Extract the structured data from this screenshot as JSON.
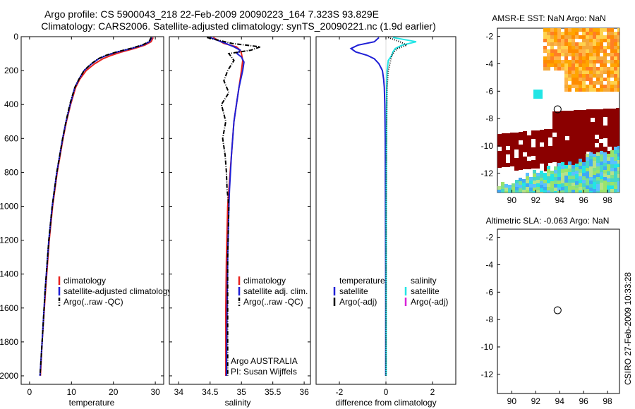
{
  "header": {
    "line1": "Argo profile: CS 5900043_218 22-Feb-2009 20090223_164 7.323S 93.829E",
    "line2": "Climatology: CARS2006. Satellite-adjusted climatology: synTS_20090221.nc (1.9d earlier)"
  },
  "side_label": "CSIRO 27-Feb-2009 10:33:28",
  "colors": {
    "climatology": "#e8231e",
    "satellite": "#1f1fd6",
    "argo": "#000000",
    "salinity_satellite": "#22e5e5",
    "salinity_argo": "#d822d8",
    "sst_land": "#8b0000"
  },
  "chart_data": [
    {
      "id": "temperature",
      "type": "line",
      "xlabel": "temperature",
      "xlim": [
        -2,
        32
      ],
      "ylim": [
        2050,
        0
      ],
      "xticks": [
        "0",
        "10",
        "20",
        "30"
      ],
      "xtick_values": [
        0,
        10,
        20,
        30
      ],
      "yticks": [
        "0",
        "200",
        "400",
        "600",
        "800",
        "1000",
        "1200",
        "1400",
        "1600",
        "1800",
        "2000"
      ],
      "ytick_values": [
        0,
        200,
        400,
        600,
        800,
        1000,
        1200,
        1400,
        1600,
        1800,
        2000
      ],
      "legend": [
        "climatology",
        "satellite-adjusted climatology",
        "Argo(..raw -QC)"
      ],
      "series": [
        {
          "name": "climatology",
          "color": "#e8231e",
          "style": "solid",
          "depth": [
            5,
            30,
            50,
            70,
            90,
            110,
            130,
            160,
            200,
            250,
            300,
            400,
            500,
            600,
            800,
            1000,
            1200,
            1500,
            1800,
            2000
          ],
          "values": [
            29.5,
            29.0,
            27.5,
            25.0,
            22.0,
            19.5,
            17.5,
            15.5,
            13.5,
            12.0,
            11.0,
            9.8,
            8.8,
            8.0,
            6.6,
            5.5,
            4.7,
            3.8,
            3.0,
            2.6
          ]
        },
        {
          "name": "satellite-adjusted climatology",
          "color": "#1f1fd6",
          "style": "solid",
          "depth": [
            5,
            30,
            50,
            70,
            90,
            110,
            130,
            160,
            200,
            250,
            300,
            400,
            500,
            600,
            800,
            1000,
            1200,
            1500,
            1800,
            2000
          ],
          "values": [
            29.2,
            28.6,
            27.0,
            24.3,
            21.0,
            18.4,
            16.5,
            14.8,
            13.0,
            11.8,
            10.8,
            9.7,
            8.7,
            7.9,
            6.5,
            5.4,
            4.6,
            3.7,
            3.0,
            2.5
          ]
        },
        {
          "name": "Argo(..raw -QC)",
          "color": "#000000",
          "style": "dashdot",
          "depth": [
            5,
            30,
            50,
            70,
            90,
            110,
            130,
            160,
            200,
            250,
            300,
            400,
            500,
            600,
            800,
            1000,
            1200,
            1500,
            1800,
            2000
          ],
          "values": [
            29.0,
            28.5,
            26.8,
            24.0,
            20.8,
            18.2,
            16.4,
            14.7,
            13.0,
            11.8,
            10.8,
            9.6,
            8.7,
            7.9,
            6.5,
            5.4,
            4.6,
            3.7,
            3.0,
            2.5
          ]
        }
      ]
    },
    {
      "id": "salinity",
      "type": "line",
      "xlabel": "salinity",
      "xlim": [
        33.85,
        36.1
      ],
      "ylim": [
        2050,
        0
      ],
      "xticks": [
        "34",
        "34.5",
        "35",
        "35.5",
        "36"
      ],
      "xtick_values": [
        34,
        34.5,
        35,
        35.5,
        36
      ],
      "legend": [
        "climatology",
        "satellite adj. clim.",
        "Argo(..raw -QC)"
      ],
      "annotation": [
        "Argo AUSTRALIA",
        "PI: Susan Wijffels"
      ],
      "series": [
        {
          "name": "climatology",
          "color": "#e8231e",
          "style": "solid",
          "depth": [
            5,
            40,
            60,
            80,
            100,
            140,
            200,
            300,
            400,
            500,
            700,
            900,
            1000,
            1300,
            1600,
            2000
          ],
          "values": [
            34.55,
            34.72,
            34.92,
            34.98,
            35.0,
            35.02,
            35.0,
            34.96,
            34.92,
            34.88,
            34.84,
            34.8,
            34.78,
            34.76,
            34.75,
            34.75
          ]
        },
        {
          "name": "satellite adj. clim.",
          "color": "#1f1fd6",
          "style": "solid",
          "depth": [
            5,
            40,
            60,
            80,
            100,
            120,
            150,
            200,
            300,
            400,
            500,
            700,
            900,
            1000,
            1300,
            1600,
            2000
          ],
          "values": [
            34.5,
            34.75,
            34.88,
            34.98,
            34.93,
            35.0,
            35.04,
            35.02,
            34.96,
            34.92,
            34.88,
            34.84,
            34.81,
            34.8,
            34.78,
            34.77,
            34.76
          ]
        },
        {
          "name": "Argo(..raw -QC)",
          "color": "#000000",
          "style": "dashdot",
          "depth": [
            5,
            40,
            60,
            80,
            100,
            140,
            200,
            260,
            330,
            400,
            500,
            600,
            700,
            800,
            900,
            1000,
            1300,
            1600,
            2000
          ],
          "values": [
            34.45,
            34.85,
            35.3,
            35.15,
            34.8,
            34.88,
            34.78,
            34.72,
            34.8,
            34.68,
            34.75,
            34.7,
            34.74,
            34.76,
            34.77,
            34.8,
            34.78,
            34.78,
            34.78
          ]
        }
      ]
    },
    {
      "id": "difference",
      "type": "line",
      "xlabel": "difference from climatology",
      "xlim": [
        -3,
        3
      ],
      "ylim": [
        2050,
        0
      ],
      "xticks": [
        "-2",
        "0",
        "2"
      ],
      "xtick_values": [
        -2,
        0,
        2
      ],
      "legend_temperature": [
        "temperature",
        "satellite",
        "Argo(-adj)"
      ],
      "legend_salinity": [
        "salinity",
        "satellite",
        "Argo(-adj)"
      ],
      "series": [
        {
          "name": "temperature satellite",
          "color": "#1f1fd6",
          "style": "solid",
          "depth": [
            5,
            30,
            50,
            70,
            90,
            110,
            130,
            160,
            200,
            250,
            300,
            400,
            600,
            1000,
            1500,
            2000
          ],
          "values": [
            -0.3,
            -0.5,
            -1.2,
            -1.5,
            -1.3,
            -0.8,
            -0.5,
            -0.3,
            -0.15,
            -0.1,
            -0.07,
            -0.05,
            -0.03,
            -0.02,
            -0.01,
            -0.01
          ]
        },
        {
          "name": "salinity satellite",
          "color": "#22e5e5",
          "style": "solid",
          "depth": [
            5,
            30,
            50,
            70,
            90,
            110,
            140,
            200,
            300,
            600,
            1000,
            2000
          ],
          "values": [
            0.3,
            1.3,
            0.7,
            0.4,
            0.3,
            0.25,
            0.1,
            0.05,
            0.03,
            0.02,
            0.01,
            0.01
          ]
        },
        {
          "name": "Argo(-adj)",
          "color": "#000000",
          "style": "dotted",
          "depth": [
            5,
            30,
            50,
            70,
            90,
            110,
            140,
            200,
            300,
            600,
            1000,
            2000
          ],
          "values": [
            0.1,
            0.6,
            0.9,
            0.5,
            0.35,
            0.25,
            0.2,
            0.1,
            0.05,
            0.02,
            0.01,
            0.0
          ]
        }
      ]
    },
    {
      "id": "sst_map",
      "type": "heatmap",
      "title": "AMSR-E SST: NaN Argo: NaN",
      "xlim": [
        88.8,
        99
      ],
      "ylim": [
        -13.4,
        -1.4
      ],
      "xticks": [
        "90",
        "92",
        "94",
        "96",
        "98"
      ],
      "xtick_values": [
        90,
        92,
        94,
        96,
        98
      ],
      "yticks": [
        "-2",
        "-4",
        "-6",
        "-8",
        "-10",
        "-12"
      ],
      "ytick_values": [
        -2,
        -4,
        -6,
        -8,
        -10,
        -12
      ],
      "argo_position": [
        93.829,
        -7.323
      ]
    },
    {
      "id": "sla_map",
      "type": "heatmap",
      "title": "Altimetric SLA: -0.063 Argo: NaN",
      "xlim": [
        88.8,
        99
      ],
      "ylim": [
        -13.4,
        -1.4
      ],
      "xticks": [
        "90",
        "92",
        "94",
        "96",
        "98"
      ],
      "xtick_values": [
        90,
        92,
        94,
        96,
        98
      ],
      "yticks": [
        "-2",
        "-4",
        "-6",
        "-8",
        "-10",
        "-12"
      ],
      "ytick_values": [
        -2,
        -4,
        -6,
        -8,
        -10,
        -12
      ],
      "argo_position": [
        93.829,
        -7.323
      ]
    }
  ]
}
